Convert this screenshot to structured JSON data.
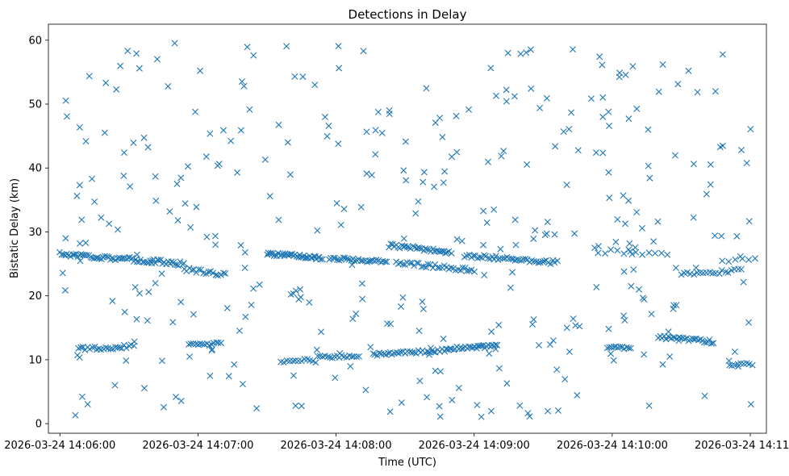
{
  "chart_data": {
    "type": "scatter",
    "title": "Detections in Delay",
    "xlabel": "Time (UTC)",
    "ylabel": "Bistatic Delay (km)",
    "xlim": [
      -25,
      1535
    ],
    "ylim": [
      -1.5,
      62.5
    ],
    "grid": false,
    "marker": "x",
    "color": "#1f77b4",
    "x_ticks": [
      {
        "value": 0,
        "label": "2026-03-24 14:06:00"
      },
      {
        "value": 300,
        "label": "2026-03-24 14:07:00"
      },
      {
        "value": 600,
        "label": "2026-03-24 14:08:00"
      },
      {
        "value": 900,
        "label": "2026-03-24 14:09:00"
      },
      {
        "value": 1200,
        "label": "2026-03-24 14:10:00"
      },
      {
        "value": 1500,
        "label": "2026-03-24 14:11:00"
      }
    ],
    "y_ticks": [
      0,
      10,
      20,
      30,
      40,
      50,
      60
    ],
    "x_units": "seconds x5 since 2026-03-24 14:06:00 (300 units = 1 min)",
    "tracks": [
      {
        "x_start": 0,
        "x_end": 270,
        "y_start": 26.6,
        "y_end": 25.0,
        "n": 70,
        "jitter": 0.35
      },
      {
        "x_start": 270,
        "x_end": 360,
        "y_start": 24.2,
        "y_end": 23.3,
        "n": 18,
        "jitter": 0.3
      },
      {
        "x_start": 450,
        "x_end": 570,
        "y_start": 26.6,
        "y_end": 25.9,
        "n": 40,
        "jitter": 0.25
      },
      {
        "x_start": 585,
        "x_end": 710,
        "y_start": 25.9,
        "y_end": 25.3,
        "n": 30,
        "jitter": 0.25
      },
      {
        "x_start": 715,
        "x_end": 850,
        "y_start": 27.9,
        "y_end": 26.8,
        "n": 35,
        "jitter": 0.3
      },
      {
        "x_start": 730,
        "x_end": 900,
        "y_start": 25.2,
        "y_end": 24.0,
        "n": 35,
        "jitter": 0.3
      },
      {
        "x_start": 880,
        "x_end": 1080,
        "y_start": 26.3,
        "y_end": 25.2,
        "n": 45,
        "jitter": 0.3
      },
      {
        "x_start": 1170,
        "x_end": 1320,
        "y_start": 27.0,
        "y_end": 26.4,
        "n": 12,
        "jitter": 0.35
      },
      {
        "x_start": 1350,
        "x_end": 1480,
        "y_start": 23.3,
        "y_end": 24.0,
        "n": 20,
        "jitter": 0.3
      },
      {
        "x_start": 1440,
        "x_end": 1510,
        "y_start": 25.6,
        "y_end": 25.6,
        "n": 6,
        "jitter": 0.3
      },
      {
        "x_start": 40,
        "x_end": 160,
        "y_start": 11.7,
        "y_end": 12.1,
        "n": 25,
        "jitter": 0.3
      },
      {
        "x_start": 280,
        "x_end": 350,
        "y_start": 12.4,
        "y_end": 12.5,
        "n": 15,
        "jitter": 0.25
      },
      {
        "x_start": 480,
        "x_end": 550,
        "y_start": 9.8,
        "y_end": 10.0,
        "n": 12,
        "jitter": 0.25
      },
      {
        "x_start": 560,
        "x_end": 650,
        "y_start": 10.4,
        "y_end": 10.6,
        "n": 18,
        "jitter": 0.2
      },
      {
        "x_start": 680,
        "x_end": 840,
        "y_start": 10.8,
        "y_end": 11.5,
        "n": 35,
        "jitter": 0.25
      },
      {
        "x_start": 840,
        "x_end": 950,
        "y_start": 11.7,
        "y_end": 12.2,
        "n": 30,
        "jitter": 0.25
      },
      {
        "x_start": 1190,
        "x_end": 1240,
        "y_start": 12.0,
        "y_end": 11.8,
        "n": 12,
        "jitter": 0.2
      },
      {
        "x_start": 1300,
        "x_end": 1420,
        "y_start": 13.6,
        "y_end": 12.8,
        "n": 30,
        "jitter": 0.3
      },
      {
        "x_start": 1460,
        "x_end": 1505,
        "y_start": 9.2,
        "y_end": 9.2,
        "n": 8,
        "jitter": 0.3
      }
    ],
    "background_noise": {
      "count": 360,
      "x_range": [
        0,
        1505
      ],
      "y_range": [
        0.8,
        60.0
      ],
      "seed": 17
    }
  }
}
